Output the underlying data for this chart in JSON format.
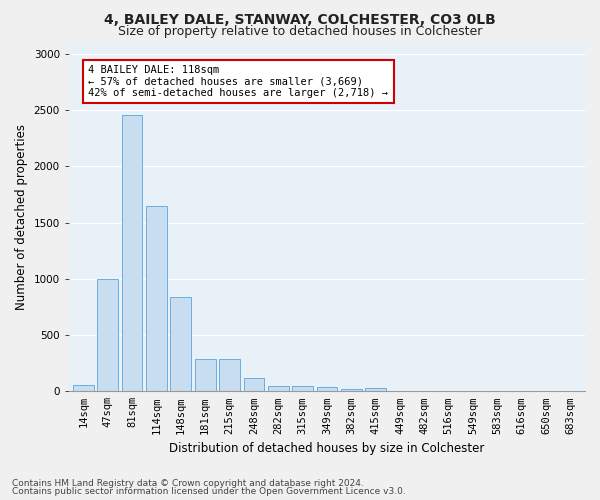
{
  "title1": "4, BAILEY DALE, STANWAY, COLCHESTER, CO3 0LB",
  "title2": "Size of property relative to detached houses in Colchester",
  "xlabel": "Distribution of detached houses by size in Colchester",
  "ylabel": "Number of detached properties",
  "categories": [
    "14sqm",
    "47sqm",
    "81sqm",
    "114sqm",
    "148sqm",
    "181sqm",
    "215sqm",
    "248sqm",
    "282sqm",
    "315sqm",
    "349sqm",
    "382sqm",
    "415sqm",
    "449sqm",
    "482sqm",
    "516sqm",
    "549sqm",
    "583sqm",
    "616sqm",
    "650sqm",
    "683sqm"
  ],
  "values": [
    55,
    1000,
    2460,
    1650,
    840,
    290,
    290,
    120,
    50,
    50,
    35,
    20,
    30,
    0,
    0,
    0,
    0,
    0,
    0,
    0,
    0
  ],
  "bar_color": "#c9ddf0",
  "bar_edge_color": "#6aaee0",
  "annotation_text": "4 BAILEY DALE: 118sqm\n← 57% of detached houses are smaller (3,669)\n42% of semi-detached houses are larger (2,718) →",
  "annotation_box_color": "#ffffff",
  "annotation_box_edge": "#cc0000",
  "footer1": "Contains HM Land Registry data © Crown copyright and database right 2024.",
  "footer2": "Contains public sector information licensed under the Open Government Licence v3.0.",
  "ylim": [
    0,
    3100
  ],
  "yticks": [
    0,
    500,
    1000,
    1500,
    2000,
    2500,
    3000
  ],
  "bg_color": "#e8f0f8",
  "grid_color": "#ffffff",
  "title1_fontsize": 10,
  "title2_fontsize": 9,
  "axis_label_fontsize": 8.5,
  "tick_fontsize": 7.5,
  "footer_fontsize": 6.5,
  "annot_fontsize": 7.5
}
